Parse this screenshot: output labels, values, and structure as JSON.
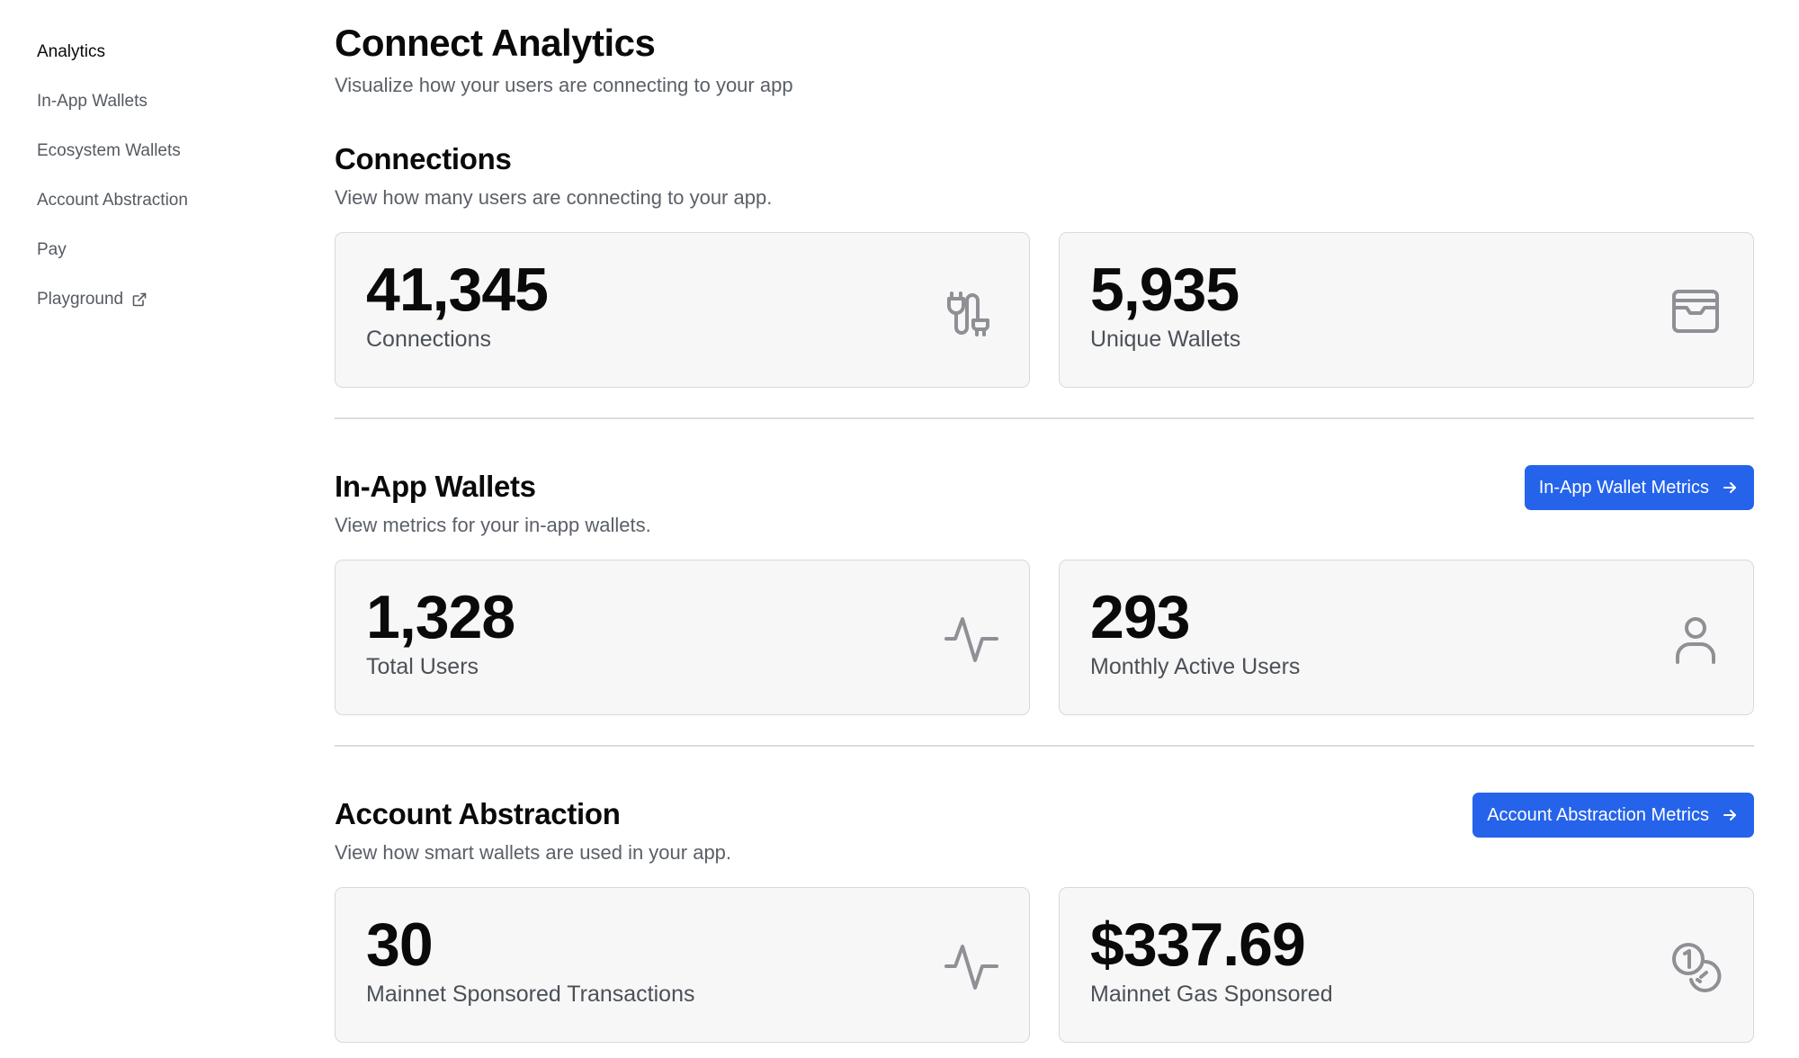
{
  "sidebar": {
    "items": [
      {
        "label": "Analytics",
        "active": true
      },
      {
        "label": "In-App Wallets"
      },
      {
        "label": "Ecosystem Wallets"
      },
      {
        "label": "Account Abstraction"
      },
      {
        "label": "Pay"
      },
      {
        "label": "Playground",
        "icon": "external-link-icon"
      }
    ]
  },
  "page": {
    "title": "Connect Analytics",
    "subtitle": "Visualize how your users are connecting to your app"
  },
  "sections": {
    "connections": {
      "title": "Connections",
      "subtitle": "View how many users are connecting to your app.",
      "cards": [
        {
          "value": "41,345",
          "label": "Connections",
          "icon": "plug-icon"
        },
        {
          "value": "5,935",
          "label": "Unique Wallets",
          "icon": "wallet-icon"
        }
      ]
    },
    "in_app_wallets": {
      "title": "In-App Wallets",
      "subtitle": "View metrics for your in-app wallets.",
      "button": "In-App Wallet Metrics",
      "cards": [
        {
          "value": "1,328",
          "label": "Total Users",
          "icon": "activity-icon"
        },
        {
          "value": "293",
          "label": "Monthly Active Users",
          "icon": "user-icon"
        }
      ]
    },
    "account_abstraction": {
      "title": "Account Abstraction",
      "subtitle": "View how smart wallets are used in your app.",
      "button": "Account Abstraction Metrics",
      "cards": [
        {
          "value": "30",
          "label": "Mainnet Sponsored Transactions",
          "icon": "activity-icon"
        },
        {
          "value": "$337.69",
          "label": "Mainnet Gas Sponsored",
          "icon": "coins-icon"
        }
      ]
    }
  },
  "colors": {
    "accent": "#2563eb",
    "card_bg": "#f7f7f7",
    "border": "#d9d9dc",
    "muted_text": "#5b6068"
  }
}
